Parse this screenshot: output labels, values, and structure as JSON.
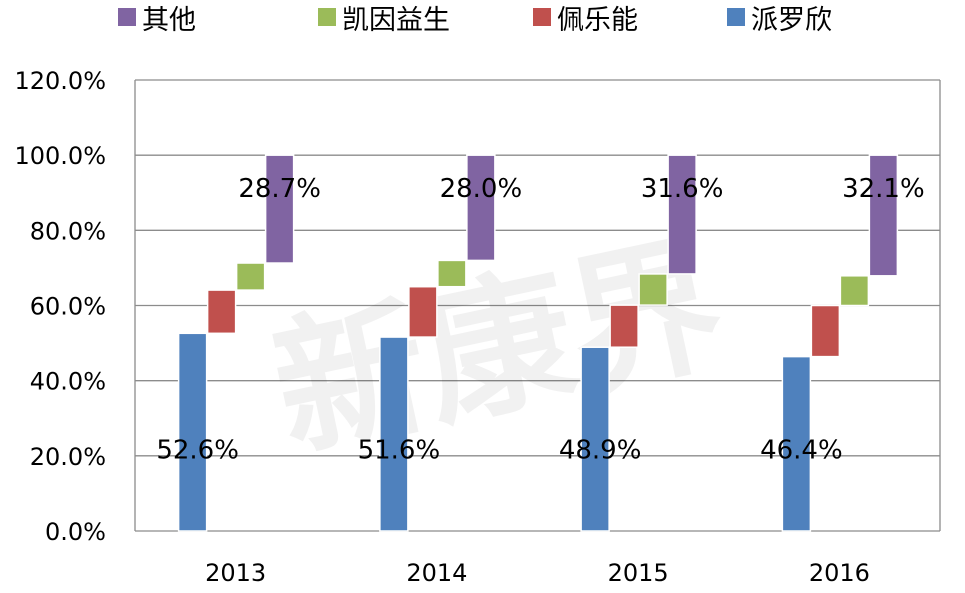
{
  "chart_data": {
    "type": "bar",
    "subtype": "stacked-waterfall",
    "categories": [
      "2013",
      "2014",
      "2015",
      "2016"
    ],
    "ylim": [
      0,
      120
    ],
    "yticks": [
      "0.0%",
      "20.0%",
      "40.0%",
      "60.0%",
      "80.0%",
      "100.0%",
      "120.0%"
    ],
    "grid": true,
    "legend_position": "top",
    "legend": [
      "其他",
      "凯因益生",
      "佩乐能",
      "派罗欣"
    ],
    "series": [
      {
        "name": "派罗欣",
        "color": "#4f81bd",
        "values": [
          52.6,
          51.6,
          48.9,
          46.4
        ],
        "labels": [
          "52.6%",
          "51.6%",
          "48.9%",
          "46.4%"
        ]
      },
      {
        "name": "佩乐能",
        "color": "#c0504d",
        "values": [
          11.5,
          13.4,
          11.2,
          13.6
        ],
        "labels": []
      },
      {
        "name": "凯因益生",
        "color": "#9bbb59",
        "values": [
          7.2,
          7.0,
          8.3,
          7.9
        ],
        "labels": []
      },
      {
        "name": "其他",
        "color": "#8064a2",
        "values": [
          28.7,
          28.0,
          31.6,
          32.1
        ],
        "labels": [
          "28.7%",
          "28.0%",
          "31.6%",
          "32.1%"
        ]
      }
    ],
    "watermark": "新康界"
  }
}
